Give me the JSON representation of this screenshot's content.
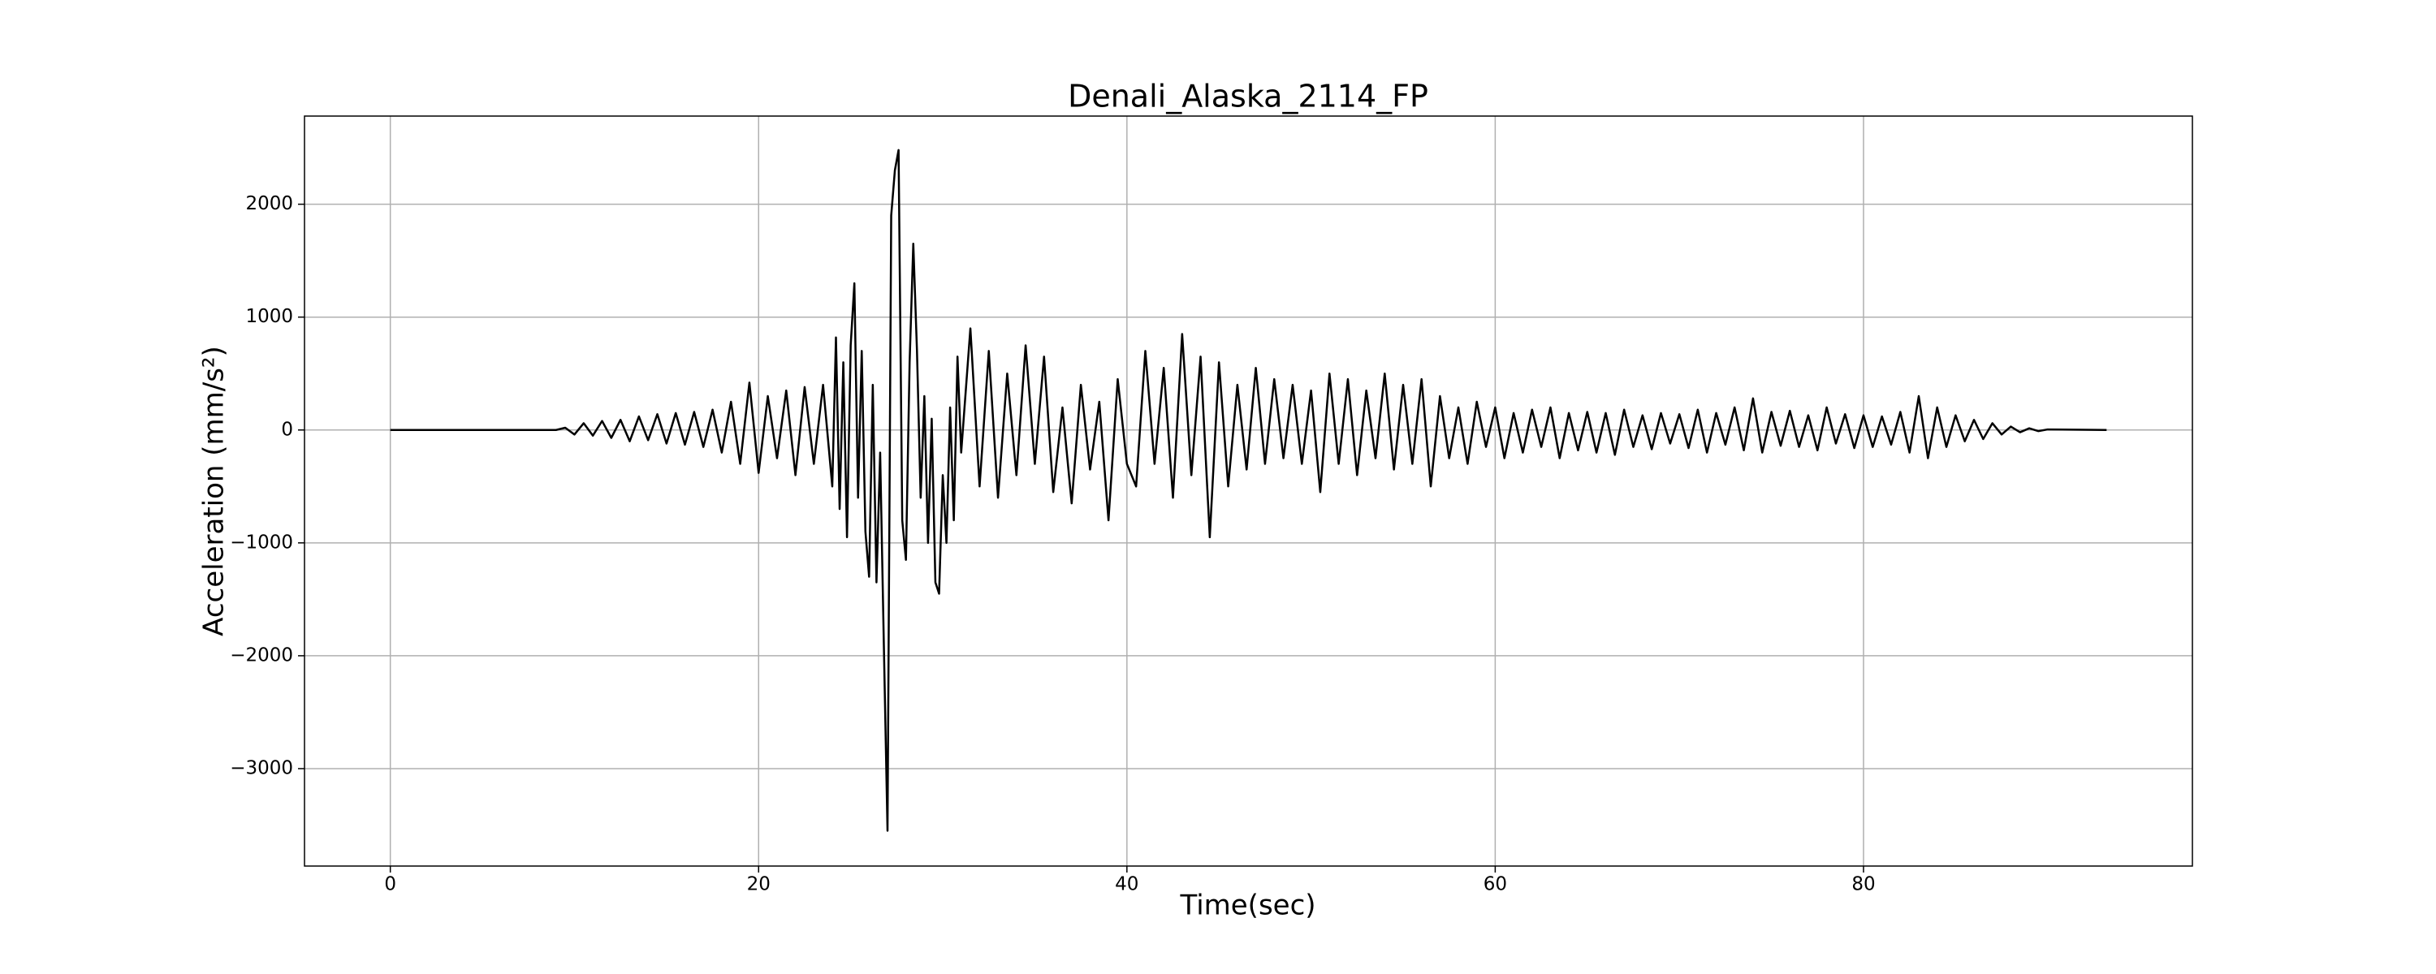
{
  "chart_data": {
    "type": "line",
    "title": "Denali_Alaska_2114_FP",
    "xlabel": "Time(sec)",
    "ylabel": "Acceleration (mm/s²)",
    "color": "#000000",
    "grid": true,
    "xlim": [
      -4.66,
      97.86
    ],
    "ylim": [
      -3863,
      2781
    ],
    "xticks": [
      0,
      20,
      40,
      60,
      80
    ],
    "yticks": [
      {
        "value": -3000,
        "label": "−3000"
      },
      {
        "value": -2000,
        "label": "−2000"
      },
      {
        "value": -1000,
        "label": "−1000"
      },
      0,
      1000,
      2000
    ],
    "x": [
      0,
      9,
      9.5,
      10,
      10.5,
      11,
      11.5,
      12,
      12.5,
      13,
      13.5,
      14,
      14.5,
      15,
      15.5,
      16,
      16.5,
      17,
      17.5,
      18,
      18.5,
      19,
      19.5,
      20,
      20.5,
      21,
      21.5,
      22,
      22.5,
      23,
      23.5,
      24,
      24.2,
      24.4,
      24.6,
      24.8,
      25,
      25.2,
      25.4,
      25.6,
      25.8,
      26,
      26.2,
      26.4,
      26.6,
      26.8,
      27,
      27.2,
      27.4,
      27.6,
      27.8,
      28,
      28.2,
      28.4,
      28.6,
      28.8,
      29,
      29.2,
      29.4,
      29.6,
      29.8,
      30,
      30.2,
      30.4,
      30.6,
      30.8,
      31,
      31.5,
      32,
      32.5,
      33,
      33.5,
      34,
      34.5,
      35,
      35.5,
      36,
      36.5,
      37,
      37.5,
      38,
      38.5,
      39,
      39.5,
      40,
      40.5,
      41,
      41.5,
      42,
      42.5,
      43,
      43.5,
      44,
      44.5,
      45,
      45.5,
      46,
      46.5,
      47,
      47.5,
      48,
      48.5,
      49,
      49.5,
      50,
      50.5,
      51,
      51.5,
      52,
      52.5,
      53,
      53.5,
      54,
      54.5,
      55,
      55.5,
      56,
      56.5,
      57,
      57.5,
      58,
      58.5,
      59,
      59.5,
      60,
      60.5,
      61,
      61.5,
      62,
      62.5,
      63,
      63.5,
      64,
      64.5,
      65,
      65.5,
      66,
      66.5,
      67,
      67.5,
      68,
      68.5,
      69,
      69.5,
      70,
      70.5,
      71,
      71.5,
      72,
      72.5,
      73,
      73.5,
      74,
      74.5,
      75,
      75.5,
      76,
      76.5,
      77,
      77.5,
      78,
      78.5,
      79,
      79.5,
      80,
      80.5,
      81,
      81.5,
      82,
      82.5,
      83,
      83.5,
      84,
      84.5,
      85,
      85.5,
      86,
      86.5,
      87,
      87.5,
      88,
      88.5,
      89,
      89.5,
      90,
      93.2
    ],
    "values": [
      0,
      0,
      20,
      -40,
      60,
      -50,
      80,
      -70,
      90,
      -100,
      120,
      -90,
      140,
      -120,
      150,
      -130,
      160,
      -150,
      180,
      -200,
      250,
      -300,
      420,
      -380,
      300,
      -250,
      350,
      -400,
      380,
      -300,
      400,
      -500,
      820,
      -700,
      600,
      -950,
      750,
      1300,
      -600,
      700,
      -900,
      -1300,
      400,
      -1350,
      -200,
      -1900,
      -3550,
      1900,
      2300,
      2480,
      -800,
      -1150,
      600,
      1650,
      700,
      -600,
      300,
      -1000,
      100,
      -1350,
      -1450,
      -400,
      -1000,
      200,
      -800,
      650,
      -200,
      900,
      -500,
      700,
      -600,
      500,
      -400,
      750,
      -300,
      650,
      -550,
      200,
      -650,
      400,
      -350,
      250,
      -800,
      450,
      -300,
      -500,
      700,
      -300,
      550,
      -600,
      850,
      -400,
      650,
      -950,
      600,
      -500,
      400,
      -350,
      550,
      -300,
      450,
      -250,
      400,
      -300,
      350,
      -550,
      500,
      -300,
      450,
      -400,
      350,
      -250,
      500,
      -350,
      400,
      -300,
      450,
      -500,
      300,
      -250,
      200,
      -300,
      250,
      -150,
      200,
      -250,
      150,
      -200,
      180,
      -150,
      200,
      -250,
      150,
      -180,
      160,
      -200,
      150,
      -220,
      180,
      -150,
      130,
      -170,
      150,
      -120,
      140,
      -160,
      180,
      -200,
      150,
      -130,
      200,
      -180,
      280,
      -200,
      160,
      -140,
      170,
      -150,
      130,
      -180,
      200,
      -120,
      140,
      -160,
      130,
      -150,
      120,
      -130,
      160,
      -200,
      300,
      -250,
      200,
      -150,
      130,
      -100,
      90,
      -80,
      60,
      -40,
      30,
      -20,
      15,
      -10,
      5,
      0
    ]
  }
}
